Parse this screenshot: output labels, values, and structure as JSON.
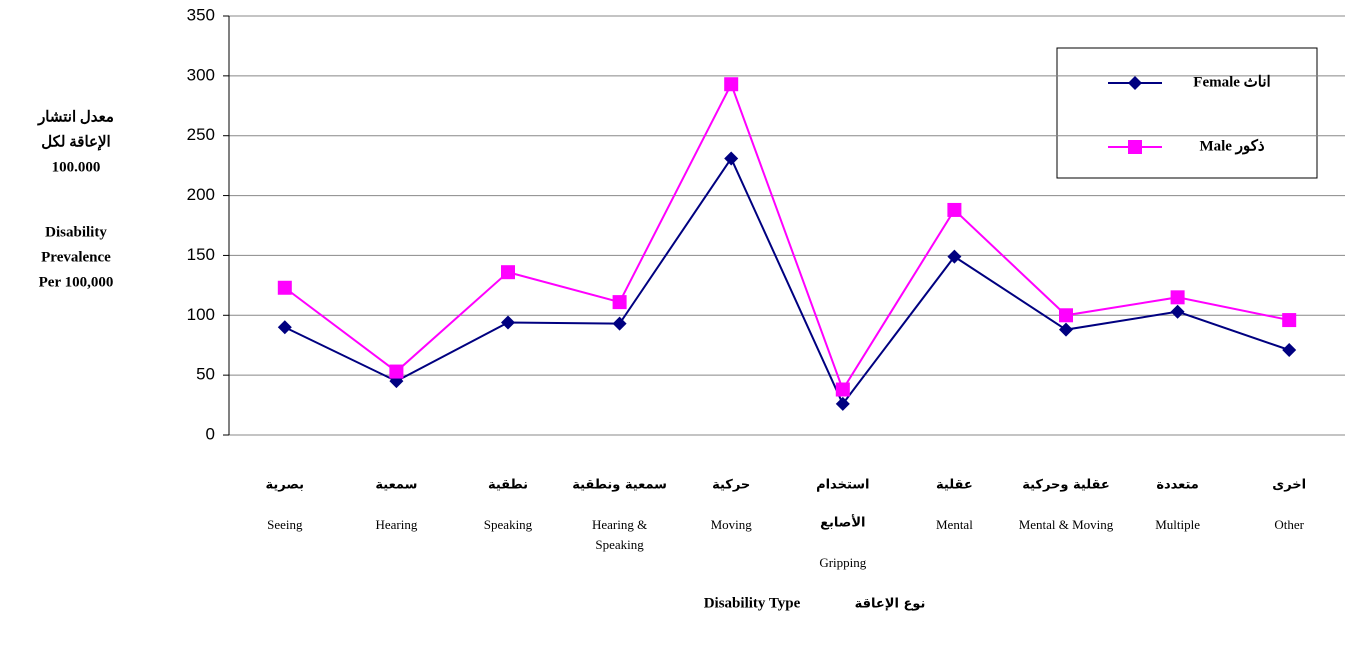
{
  "chart_data": {
    "type": "line",
    "ylabel_ar": [
      "معدل انتشار",
      "الإعاقة لكل",
      "100.000"
    ],
    "ylabel_en": [
      "Disability",
      "Prevalence",
      "Per 100,000"
    ],
    "xlabel_ar": "نوع الإعاقة",
    "xlabel_en": "Disability Type",
    "categories": [
      {
        "ar": [
          "بصرية"
        ],
        "en": [
          "Seeing"
        ]
      },
      {
        "ar": [
          "سمعية"
        ],
        "en": [
          "Hearing"
        ]
      },
      {
        "ar": [
          "نطقية"
        ],
        "en": [
          "Speaking"
        ]
      },
      {
        "ar": [
          "سمعية ونطقية"
        ],
        "en": [
          "Hearing &",
          "Speaking"
        ]
      },
      {
        "ar": [
          "حركية"
        ],
        "en": [
          "Moving"
        ]
      },
      {
        "ar": [
          "استخدام",
          "الأصابع"
        ],
        "en": [
          "Gripping"
        ]
      },
      {
        "ar": [
          "عقلية"
        ],
        "en": [
          "Mental"
        ]
      },
      {
        "ar": [
          "عقلية وحركية"
        ],
        "en": [
          "Mental & Moving"
        ]
      },
      {
        "ar": [
          "متعددة"
        ],
        "en": [
          "Multiple"
        ]
      },
      {
        "ar": [
          "اخرى"
        ],
        "en": [
          "Other"
        ]
      }
    ],
    "series": [
      {
        "name": "اناث Female",
        "color": "#000080",
        "marker": "diamond",
        "values": [
          90,
          45,
          94,
          93,
          231,
          26,
          149,
          88,
          103,
          71
        ]
      },
      {
        "name": "ذكور Male",
        "color": "#ff00ff",
        "marker": "square",
        "values": [
          123,
          53,
          136,
          111,
          293,
          38,
          188,
          100,
          115,
          96
        ]
      }
    ],
    "ylim": [
      0,
      350
    ],
    "yticks": [
      0,
      50,
      100,
      150,
      200,
      250,
      300,
      350
    ],
    "grid": true,
    "legend": "upper right"
  }
}
